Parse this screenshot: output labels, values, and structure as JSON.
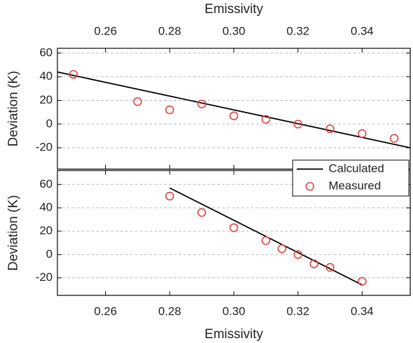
{
  "chart_data": [
    {
      "type": "line",
      "xlabel": "Emissivity",
      "ylabel": "Deviation (K)",
      "xaxis_position": "top",
      "xlim": [
        0.245,
        0.355
      ],
      "xticks": [
        0.26,
        0.28,
        {
          "value": 0.3,
          "label": "0.30"
        },
        0.32,
        0.34
      ],
      "ylim": [
        -38,
        64
      ],
      "yticks": [
        -20,
        0,
        20,
        40,
        60
      ],
      "grid": true,
      "series": [
        {
          "kind": "line",
          "color": "#000000",
          "x": [
            0.245,
            0.355
          ],
          "values": [
            44,
            -20
          ]
        },
        {
          "kind": "markers",
          "color": "#e8413c",
          "x": [
            0.25,
            0.27,
            0.28,
            0.29,
            0.3,
            0.31,
            0.32,
            0.33,
            0.34,
            0.35
          ],
          "values": [
            42,
            19,
            12,
            17,
            7,
            4,
            0,
            -4,
            -8,
            -12
          ]
        }
      ]
    },
    {
      "type": "line",
      "xlabel": "Emissivity",
      "ylabel": "Deviation (K)",
      "xaxis_position": "bottom",
      "xlim": [
        0.245,
        0.355
      ],
      "xticks": [
        0.26,
        0.28,
        {
          "value": 0.3,
          "label": "0.30"
        },
        0.32,
        0.34
      ],
      "ylim": [
        -35,
        72
      ],
      "yticks": [
        -20,
        0,
        20,
        40,
        60
      ],
      "grid": true,
      "legend": "top-right",
      "series": [
        {
          "name": "Calculated",
          "kind": "line",
          "color": "#000000",
          "x": [
            0.28,
            0.34
          ],
          "values": [
            57,
            -26
          ]
        },
        {
          "name": "Measured",
          "kind": "markers",
          "color": "#e8413c",
          "x": [
            0.28,
            0.29,
            0.3,
            0.31,
            0.315,
            0.32,
            0.325,
            0.33,
            0.34
          ],
          "values": [
            50,
            36,
            23,
            12,
            5,
            0,
            -8,
            -11,
            -23
          ]
        }
      ]
    }
  ]
}
